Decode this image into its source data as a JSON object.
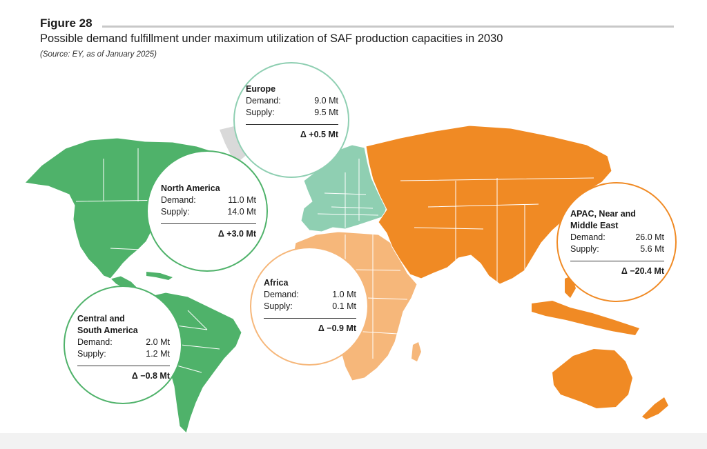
{
  "header": {
    "figure_label": "Figure 28",
    "title": "Possible demand fulfillment under maximum utilization of SAF production capacities in 2030",
    "source": "(Source: EY, as of January 2025)"
  },
  "colors": {
    "surplus_green": "#4fb26a",
    "europe_green": "#8fcfb2",
    "africa_orange": "#f6b77a",
    "apac_orange": "#f08a24",
    "greenland_gray": "#d9d9d9",
    "border_white": "#ffffff"
  },
  "regions": {
    "europe": {
      "name": "Europe",
      "demand_label": "Demand:",
      "demand": "9.0 Mt",
      "supply_label": "Supply:",
      "supply": "9.5 Mt",
      "delta": "Δ +0.5 Mt"
    },
    "north_america": {
      "name": "North America",
      "demand_label": "Demand:",
      "demand": "11.0 Mt",
      "supply_label": "Supply:",
      "supply": "14.0 Mt",
      "delta": "Δ +3.0 Mt"
    },
    "apac": {
      "name_line1": "APAC, Near and",
      "name_line2": "Middle East",
      "demand_label": "Demand:",
      "demand": "26.0 Mt",
      "supply_label": "Supply:",
      "supply": "5.6 Mt",
      "delta": "Δ −20.4 Mt"
    },
    "africa": {
      "name": "Africa",
      "demand_label": "Demand:",
      "demand": "1.0 Mt",
      "supply_label": "Supply:",
      "supply": "0.1 Mt",
      "delta": "Δ −0.9 Mt"
    },
    "south_america": {
      "name_line1": "Central and",
      "name_line2": "South America",
      "demand_label": "Demand:",
      "demand": "2.0 Mt",
      "supply_label": "Supply:",
      "supply": "1.2 Mt",
      "delta": "Δ −0.8 Mt"
    }
  }
}
